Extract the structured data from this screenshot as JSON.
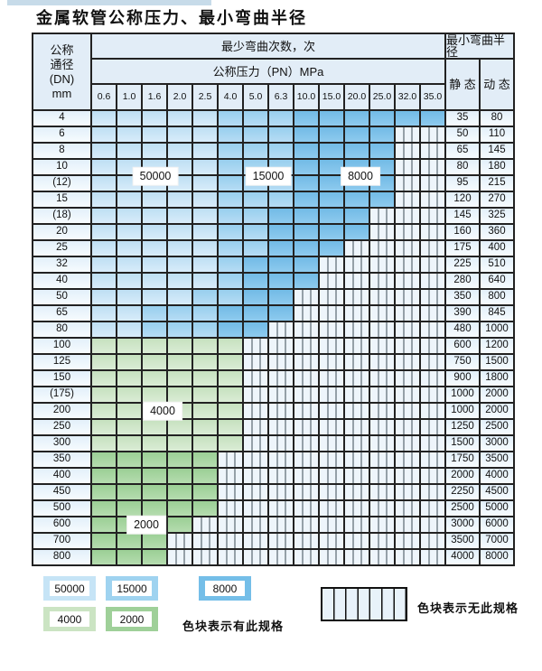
{
  "title": "金属软管公称压力、最小弯曲半径",
  "table": {
    "header": {
      "dn_lines": [
        "公称",
        "通径",
        "(DN)",
        "mm"
      ],
      "bend_times": "最少弯曲次数，次",
      "pressure": "公称压力（PN）MPa",
      "radius": "最小弯曲半径",
      "static_label": "静 态",
      "dynamic_label": "动 态",
      "pressures": [
        "0.6",
        "1.0",
        "1.6",
        "2.0",
        "2.5",
        "4.0",
        "5.0",
        "6.3",
        "10.0",
        "15.0",
        "20.0",
        "25.0",
        "32.0",
        "35.0"
      ]
    },
    "zone_labels": [
      "50000",
      "15000",
      "8000",
      "4000",
      "2000"
    ],
    "rows": [
      {
        "dn": "4",
        "cells": [
          "b1",
          "b1",
          "b1",
          "b1",
          "b1",
          "b2",
          "b2",
          "b2",
          "b3",
          "b3",
          "b3",
          "b3",
          "b3",
          "b3"
        ],
        "static": "35",
        "dynamic": "80"
      },
      {
        "dn": "6",
        "cells": [
          "b1",
          "b1",
          "b1",
          "b1",
          "b1",
          "b2",
          "b2",
          "b2",
          "b3",
          "b3",
          "b3",
          "b3",
          "x",
          "x"
        ],
        "static": "50",
        "dynamic": "110"
      },
      {
        "dn": "8",
        "cells": [
          "b1",
          "b1",
          "b1",
          "b1",
          "b1",
          "b2",
          "b2",
          "b2",
          "b3",
          "b3",
          "b3",
          "b3",
          "x",
          "x"
        ],
        "static": "65",
        "dynamic": "145"
      },
      {
        "dn": "10",
        "cells": [
          "b1",
          "b1",
          "b1",
          "b1",
          "b1",
          "b2",
          "b2",
          "b2",
          "b3",
          "b3",
          "b3",
          "b3",
          "x",
          "x"
        ],
        "static": "80",
        "dynamic": "180"
      },
      {
        "dn": "(12)",
        "cells": [
          "b1",
          "b1",
          "b1",
          "b1",
          "b1",
          "b2",
          "b2",
          "b2",
          "b3",
          "b3",
          "b3",
          "b3",
          "x",
          "x"
        ],
        "static": "95",
        "dynamic": "215"
      },
      {
        "dn": "15",
        "cells": [
          "b1",
          "b1",
          "b1",
          "b1",
          "b1",
          "b2",
          "b2",
          "b2",
          "b3",
          "b3",
          "b3",
          "b3",
          "x",
          "x"
        ],
        "static": "120",
        "dynamic": "270"
      },
      {
        "dn": "(18)",
        "cells": [
          "b1",
          "b1",
          "b1",
          "b1",
          "b1",
          "b2",
          "b2",
          "b3",
          "b3",
          "b3",
          "b3",
          "x",
          "x",
          "x"
        ],
        "static": "145",
        "dynamic": "325"
      },
      {
        "dn": "20",
        "cells": [
          "b1",
          "b1",
          "b1",
          "b1",
          "b1",
          "b2",
          "b2",
          "b3",
          "b3",
          "b3",
          "b3",
          "x",
          "x",
          "x"
        ],
        "static": "160",
        "dynamic": "360"
      },
      {
        "dn": "25",
        "cells": [
          "b1",
          "b1",
          "b1",
          "b1",
          "b1",
          "b2",
          "b2",
          "b3",
          "b3",
          "b3",
          "x",
          "x",
          "x",
          "x"
        ],
        "static": "175",
        "dynamic": "400"
      },
      {
        "dn": "32",
        "cells": [
          "b1",
          "b1",
          "b1",
          "b1",
          "b1",
          "b2",
          "b3",
          "b3",
          "b3",
          "x",
          "x",
          "x",
          "x",
          "x"
        ],
        "static": "225",
        "dynamic": "510"
      },
      {
        "dn": "40",
        "cells": [
          "b1",
          "b1",
          "b1",
          "b1",
          "b1",
          "b2",
          "b3",
          "b3",
          "b3",
          "x",
          "x",
          "x",
          "x",
          "x"
        ],
        "static": "280",
        "dynamic": "640"
      },
      {
        "dn": "50",
        "cells": [
          "b1",
          "b1",
          "b1",
          "b1",
          "b2",
          "b2",
          "b3",
          "b3",
          "x",
          "x",
          "x",
          "x",
          "x",
          "x"
        ],
        "static": "350",
        "dynamic": "800"
      },
      {
        "dn": "65",
        "cells": [
          "b1",
          "b1",
          "b2",
          "b2",
          "b2",
          "b3",
          "b3",
          "b3",
          "x",
          "x",
          "x",
          "x",
          "x",
          "x"
        ],
        "static": "390",
        "dynamic": "845"
      },
      {
        "dn": "80",
        "cells": [
          "b1",
          "b1",
          "b2",
          "b2",
          "b2",
          "b3",
          "b3",
          "x",
          "x",
          "x",
          "x",
          "x",
          "x",
          "x"
        ],
        "static": "480",
        "dynamic": "1000"
      },
      {
        "dn": "100",
        "cells": [
          "g1",
          "g1",
          "g1",
          "g1",
          "g1",
          "g1",
          "x",
          "x",
          "x",
          "x",
          "x",
          "x",
          "x",
          "x"
        ],
        "static": "600",
        "dynamic": "1200"
      },
      {
        "dn": "125",
        "cells": [
          "g1",
          "g1",
          "g1",
          "g1",
          "g1",
          "g1",
          "x",
          "x",
          "x",
          "x",
          "x",
          "x",
          "x",
          "x"
        ],
        "static": "750",
        "dynamic": "1500"
      },
      {
        "dn": "150",
        "cells": [
          "g1",
          "g1",
          "g1",
          "g1",
          "g1",
          "g1",
          "x",
          "x",
          "x",
          "x",
          "x",
          "x",
          "x",
          "x"
        ],
        "static": "900",
        "dynamic": "1800"
      },
      {
        "dn": "(175)",
        "cells": [
          "g1",
          "g1",
          "g1",
          "g1",
          "g1",
          "g1",
          "x",
          "x",
          "x",
          "x",
          "x",
          "x",
          "x",
          "x"
        ],
        "static": "1000",
        "dynamic": "2000"
      },
      {
        "dn": "200",
        "cells": [
          "g1",
          "g1",
          "g1",
          "g1",
          "g1",
          "g1",
          "x",
          "x",
          "x",
          "x",
          "x",
          "x",
          "x",
          "x"
        ],
        "static": "1000",
        "dynamic": "2000"
      },
      {
        "dn": "250",
        "cells": [
          "g1",
          "g1",
          "g1",
          "g1",
          "g1",
          "g1",
          "x",
          "x",
          "x",
          "x",
          "x",
          "x",
          "x",
          "x"
        ],
        "static": "1250",
        "dynamic": "2500"
      },
      {
        "dn": "300",
        "cells": [
          "g1",
          "g1",
          "g1",
          "g1",
          "g1",
          "g1",
          "x",
          "x",
          "x",
          "x",
          "x",
          "x",
          "x",
          "x"
        ],
        "static": "1500",
        "dynamic": "3000"
      },
      {
        "dn": "350",
        "cells": [
          "g2",
          "g2",
          "g2",
          "g2",
          "g2",
          "x",
          "x",
          "x",
          "x",
          "x",
          "x",
          "x",
          "x",
          "x"
        ],
        "static": "1750",
        "dynamic": "3500"
      },
      {
        "dn": "400",
        "cells": [
          "g2",
          "g2",
          "g2",
          "g2",
          "g2",
          "x",
          "x",
          "x",
          "x",
          "x",
          "x",
          "x",
          "x",
          "x"
        ],
        "static": "2000",
        "dynamic": "4000"
      },
      {
        "dn": "450",
        "cells": [
          "g2",
          "g2",
          "g2",
          "g2",
          "g2",
          "x",
          "x",
          "x",
          "x",
          "x",
          "x",
          "x",
          "x",
          "x"
        ],
        "static": "2250",
        "dynamic": "4500"
      },
      {
        "dn": "500",
        "cells": [
          "g2",
          "g2",
          "g2",
          "g2",
          "g2",
          "x",
          "x",
          "x",
          "x",
          "x",
          "x",
          "x",
          "x",
          "x"
        ],
        "static": "2500",
        "dynamic": "5000"
      },
      {
        "dn": "600",
        "cells": [
          "g2",
          "g2",
          "g2",
          "g2",
          "x",
          "x",
          "x",
          "x",
          "x",
          "x",
          "x",
          "x",
          "x",
          "x"
        ],
        "static": "3000",
        "dynamic": "6000"
      },
      {
        "dn": "700",
        "cells": [
          "g2",
          "g2",
          "g2",
          "x",
          "x",
          "x",
          "x",
          "x",
          "x",
          "x",
          "x",
          "x",
          "x",
          "x"
        ],
        "static": "3500",
        "dynamic": "7000"
      },
      {
        "dn": "800",
        "cells": [
          "g2",
          "g2",
          "g2",
          "x",
          "x",
          "x",
          "x",
          "x",
          "x",
          "x",
          "x",
          "x",
          "x",
          "x"
        ],
        "static": "4000",
        "dynamic": "8000"
      }
    ]
  },
  "legend": {
    "swatches": [
      {
        "label": "50000",
        "type": "b1"
      },
      {
        "label": "15000",
        "type": "b2"
      },
      {
        "label": "8000",
        "type": "b3"
      },
      {
        "label": "4000",
        "type": "g1"
      },
      {
        "label": "2000",
        "type": "g2"
      }
    ],
    "has_spec_text": "色块表示有此规格",
    "no_spec_text": "色块表示无此规格"
  },
  "colors": {
    "blue_50000": "#c6e4f6",
    "blue_15000": "#9fd3f0",
    "blue_8000": "#74bee8",
    "green_4000": "#cbe4c3",
    "green_2000": "#9fd099",
    "header_bg": "#e2edf7",
    "grid_line": "#222222"
  }
}
